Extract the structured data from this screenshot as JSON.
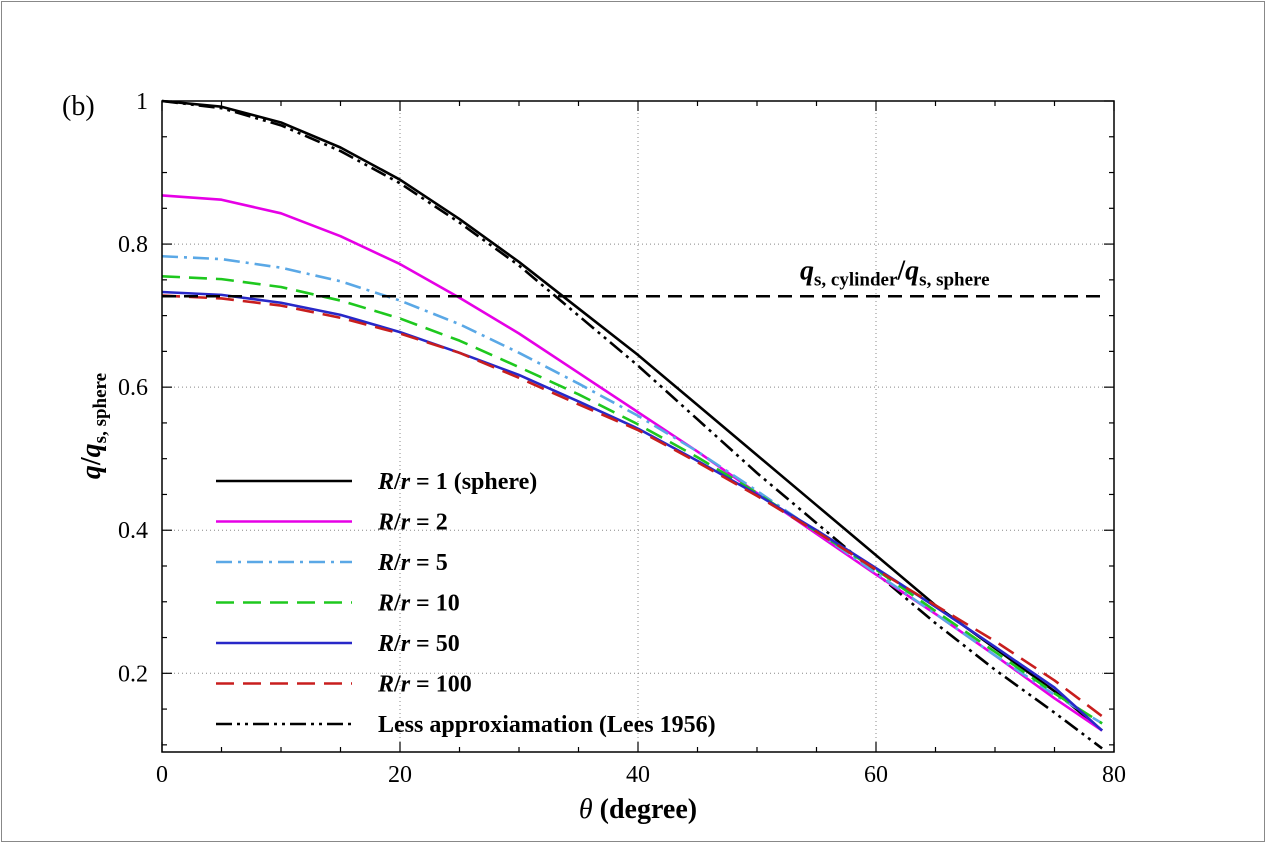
{
  "panel_label": "(b)",
  "chart_data": {
    "type": "line",
    "title": "",
    "xlabel": "θ (degree)",
    "ylabel": "q/q_s, sphere",
    "xlim": [
      0,
      80
    ],
    "ylim": [
      0.09,
      1.0
    ],
    "xticks": [
      0,
      20,
      40,
      60,
      80
    ],
    "yticks": [
      0.2,
      0.4,
      0.6,
      0.8,
      1
    ],
    "grid": true,
    "legend_position": "bottom-left",
    "series": [
      {
        "name": "R/r = 1 (sphere)",
        "label_parts": [
          "R",
          "/",
          "r",
          " = 1 (sphere)"
        ],
        "color": "#000000",
        "dash": "solid",
        "x": [
          0,
          5,
          10,
          15,
          20,
          25,
          30,
          35,
          40,
          45,
          50,
          55,
          60,
          65,
          70,
          75,
          79
        ],
        "y": [
          1.0,
          0.992,
          0.97,
          0.935,
          0.89,
          0.835,
          0.775,
          0.71,
          0.645,
          0.575,
          0.505,
          0.435,
          0.365,
          0.295,
          0.235,
          0.175,
          0.12
        ]
      },
      {
        "name": "R/r = 2",
        "label_parts": [
          "R",
          "/",
          "r",
          " = 2"
        ],
        "color": "#e600e6",
        "dash": "solid",
        "x": [
          0,
          5,
          10,
          15,
          20,
          25,
          30,
          35,
          40,
          45,
          50,
          55,
          60,
          65,
          70,
          75,
          79
        ],
        "y": [
          0.868,
          0.862,
          0.843,
          0.811,
          0.772,
          0.725,
          0.675,
          0.62,
          0.565,
          0.51,
          0.452,
          0.395,
          0.338,
          0.283,
          0.225,
          0.165,
          0.12
        ]
      },
      {
        "name": "R/r = 5",
        "label_parts": [
          "R",
          "/",
          "r",
          " = 5"
        ],
        "color": "#5aa8e6",
        "dash": "dashdot",
        "x": [
          0,
          5,
          10,
          15,
          20,
          25,
          30,
          35,
          40,
          45,
          50,
          55,
          60,
          65,
          70,
          75,
          79
        ],
        "y": [
          0.783,
          0.779,
          0.767,
          0.748,
          0.721,
          0.688,
          0.648,
          0.605,
          0.56,
          0.51,
          0.455,
          0.398,
          0.34,
          0.283,
          0.225,
          0.17,
          0.13
        ]
      },
      {
        "name": "R/r = 10",
        "label_parts": [
          "R",
          "/",
          "r",
          " = 10"
        ],
        "color": "#1ec81e",
        "dash": "dash",
        "x": [
          0,
          5,
          10,
          15,
          20,
          25,
          30,
          35,
          40,
          45,
          50,
          55,
          60,
          65,
          70,
          75,
          79
        ],
        "y": [
          0.755,
          0.751,
          0.74,
          0.721,
          0.696,
          0.665,
          0.628,
          0.59,
          0.548,
          0.502,
          0.452,
          0.398,
          0.345,
          0.287,
          0.23,
          0.172,
          0.13
        ]
      },
      {
        "name": "R/r = 50",
        "label_parts": [
          "R",
          "/",
          "r",
          " = 50"
        ],
        "color": "#2828c8",
        "dash": "solid",
        "x": [
          0,
          5,
          10,
          15,
          20,
          25,
          30,
          35,
          40,
          45,
          50,
          55,
          60,
          65,
          70,
          75,
          79
        ],
        "y": [
          0.733,
          0.729,
          0.718,
          0.701,
          0.677,
          0.648,
          0.617,
          0.58,
          0.542,
          0.497,
          0.45,
          0.4,
          0.347,
          0.293,
          0.237,
          0.18,
          0.12
        ]
      },
      {
        "name": "R/r = 100",
        "label_parts": [
          "R",
          "/",
          "r",
          " = 100"
        ],
        "color": "#c81e1e",
        "dash": "dash",
        "x": [
          0,
          5,
          10,
          15,
          20,
          25,
          30,
          35,
          40,
          45,
          50,
          55,
          60,
          65,
          70,
          75,
          79
        ],
        "y": [
          0.728,
          0.724,
          0.714,
          0.697,
          0.675,
          0.648,
          0.613,
          0.576,
          0.54,
          0.495,
          0.448,
          0.398,
          0.345,
          0.295,
          0.245,
          0.19,
          0.14
        ]
      },
      {
        "name": "Less approxiamation (Lees 1956)",
        "label_parts": [
          "",
          "",
          "",
          "Less approxiamation (Lees 1956)"
        ],
        "color": "#000000",
        "dash": "dashdotdot",
        "x": [
          0,
          5,
          10,
          15,
          20,
          25,
          30,
          35,
          40,
          45,
          50,
          55,
          60,
          65,
          70,
          75,
          79
        ],
        "y": [
          1.0,
          0.99,
          0.966,
          0.93,
          0.885,
          0.83,
          0.77,
          0.7,
          0.63,
          0.555,
          0.48,
          0.41,
          0.34,
          0.27,
          0.205,
          0.145,
          0.095
        ]
      },
      {
        "name": "q_s, cylinder/q_s, sphere",
        "color": "#000000",
        "dash": "longdash",
        "x": [
          0,
          79
        ],
        "y": [
          0.727,
          0.727
        ]
      }
    ],
    "annotation": {
      "text_parts": [
        "q",
        "s, cylinder",
        "/",
        "q",
        "s, sphere"
      ],
      "near_series": "q_s, cylinder/q_s, sphere"
    },
    "ylabel_parts": [
      "q",
      "/",
      "q",
      "s, sphere"
    ],
    "xlabel_parts": [
      "θ",
      " (degree)"
    ]
  }
}
